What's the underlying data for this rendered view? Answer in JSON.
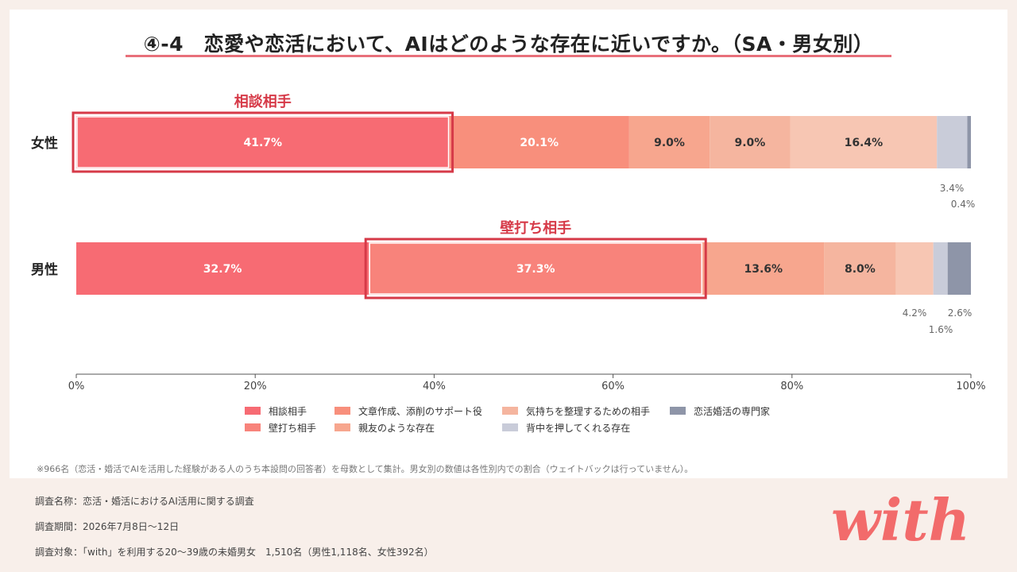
{
  "title": "④-4　恋愛や恋活において、AIはどのような存在に近いですか。（SA・男女別）",
  "chart_data": {
    "type": "bar",
    "orientation": "horizontal-stacked",
    "categories": [
      "女性",
      "男性"
    ],
    "series": [
      {
        "name": "相談相手",
        "color": "#f76b73",
        "values": [
          41.7,
          32.7
        ]
      },
      {
        "name": "壁打ち相手",
        "color": "#f8837b",
        "values": [
          0,
          37.3
        ]
      },
      {
        "name": "文章作成、添削のサポート役",
        "color": "#f88f7c",
        "values": [
          20.1,
          0
        ]
      },
      {
        "name": "親友のような存在",
        "color": "#f7a68e",
        "values": [
          9.0,
          13.6
        ]
      },
      {
        "name": "気持ちを整理するための相手",
        "color": "#f5b59f",
        "values": [
          9.0,
          8.0
        ]
      },
      {
        "name": "",
        "color": "#f7c6b3",
        "values": [
          16.4,
          4.2
        ]
      },
      {
        "name": "背中を押してくれる存在",
        "color": "#c9ccd9",
        "values": [
          3.4,
          1.6
        ]
      },
      {
        "name": "恋活婚活の専門家",
        "color": "#8e95a8",
        "values": [
          0.4,
          2.6
        ]
      }
    ],
    "value_labels": [
      [
        "41.7%",
        "",
        "20.1%",
        "9.0%",
        "9.0%",
        "16.4%",
        "3.4%",
        "0.4%"
      ],
      [
        "32.7%",
        "37.3%",
        "",
        "13.6%",
        "8.0%",
        "4.2%",
        "1.6%",
        "2.6%"
      ]
    ],
    "xlim": [
      0,
      100
    ],
    "xticks": [
      "0%",
      "20%",
      "40%",
      "60%",
      "80%",
      "100%"
    ],
    "highlights": [
      {
        "row": 0,
        "series": 0,
        "label": "相談相手"
      },
      {
        "row": 1,
        "series": 1,
        "label": "壁打ち相手"
      }
    ],
    "legend": [
      "相談相手",
      "壁打ち相手",
      "文章作成、添削のサポート役",
      "親友のような存在",
      "気持ちを整理するための相手",
      "背中を押してくれる存在",
      "恋活婚活の専門家"
    ],
    "legend_colors": [
      "#f76b73",
      "#f8837b",
      "#f88f7c",
      "#f7a68e",
      "#f5b59f",
      "#c9ccd9",
      "#8e95a8"
    ],
    "legend_placement": "bottom"
  },
  "note": "※966名（恋活・婚活でAIを活用した経験がある人のうち本設問の回答者）を母数として集計。男女別の数値は各性別内での割合（ウェイトバックは行っていません）。",
  "survey": {
    "name": "調査名称：恋活・婚活におけるAI活用に関する調査",
    "period": "調査期間：2026年7月8日〜12日",
    "target": "調査対象：「with」を利用する20〜39歳の未婚男女　1,510名（男性1,118名、女性392名）"
  },
  "logo_text": "with"
}
